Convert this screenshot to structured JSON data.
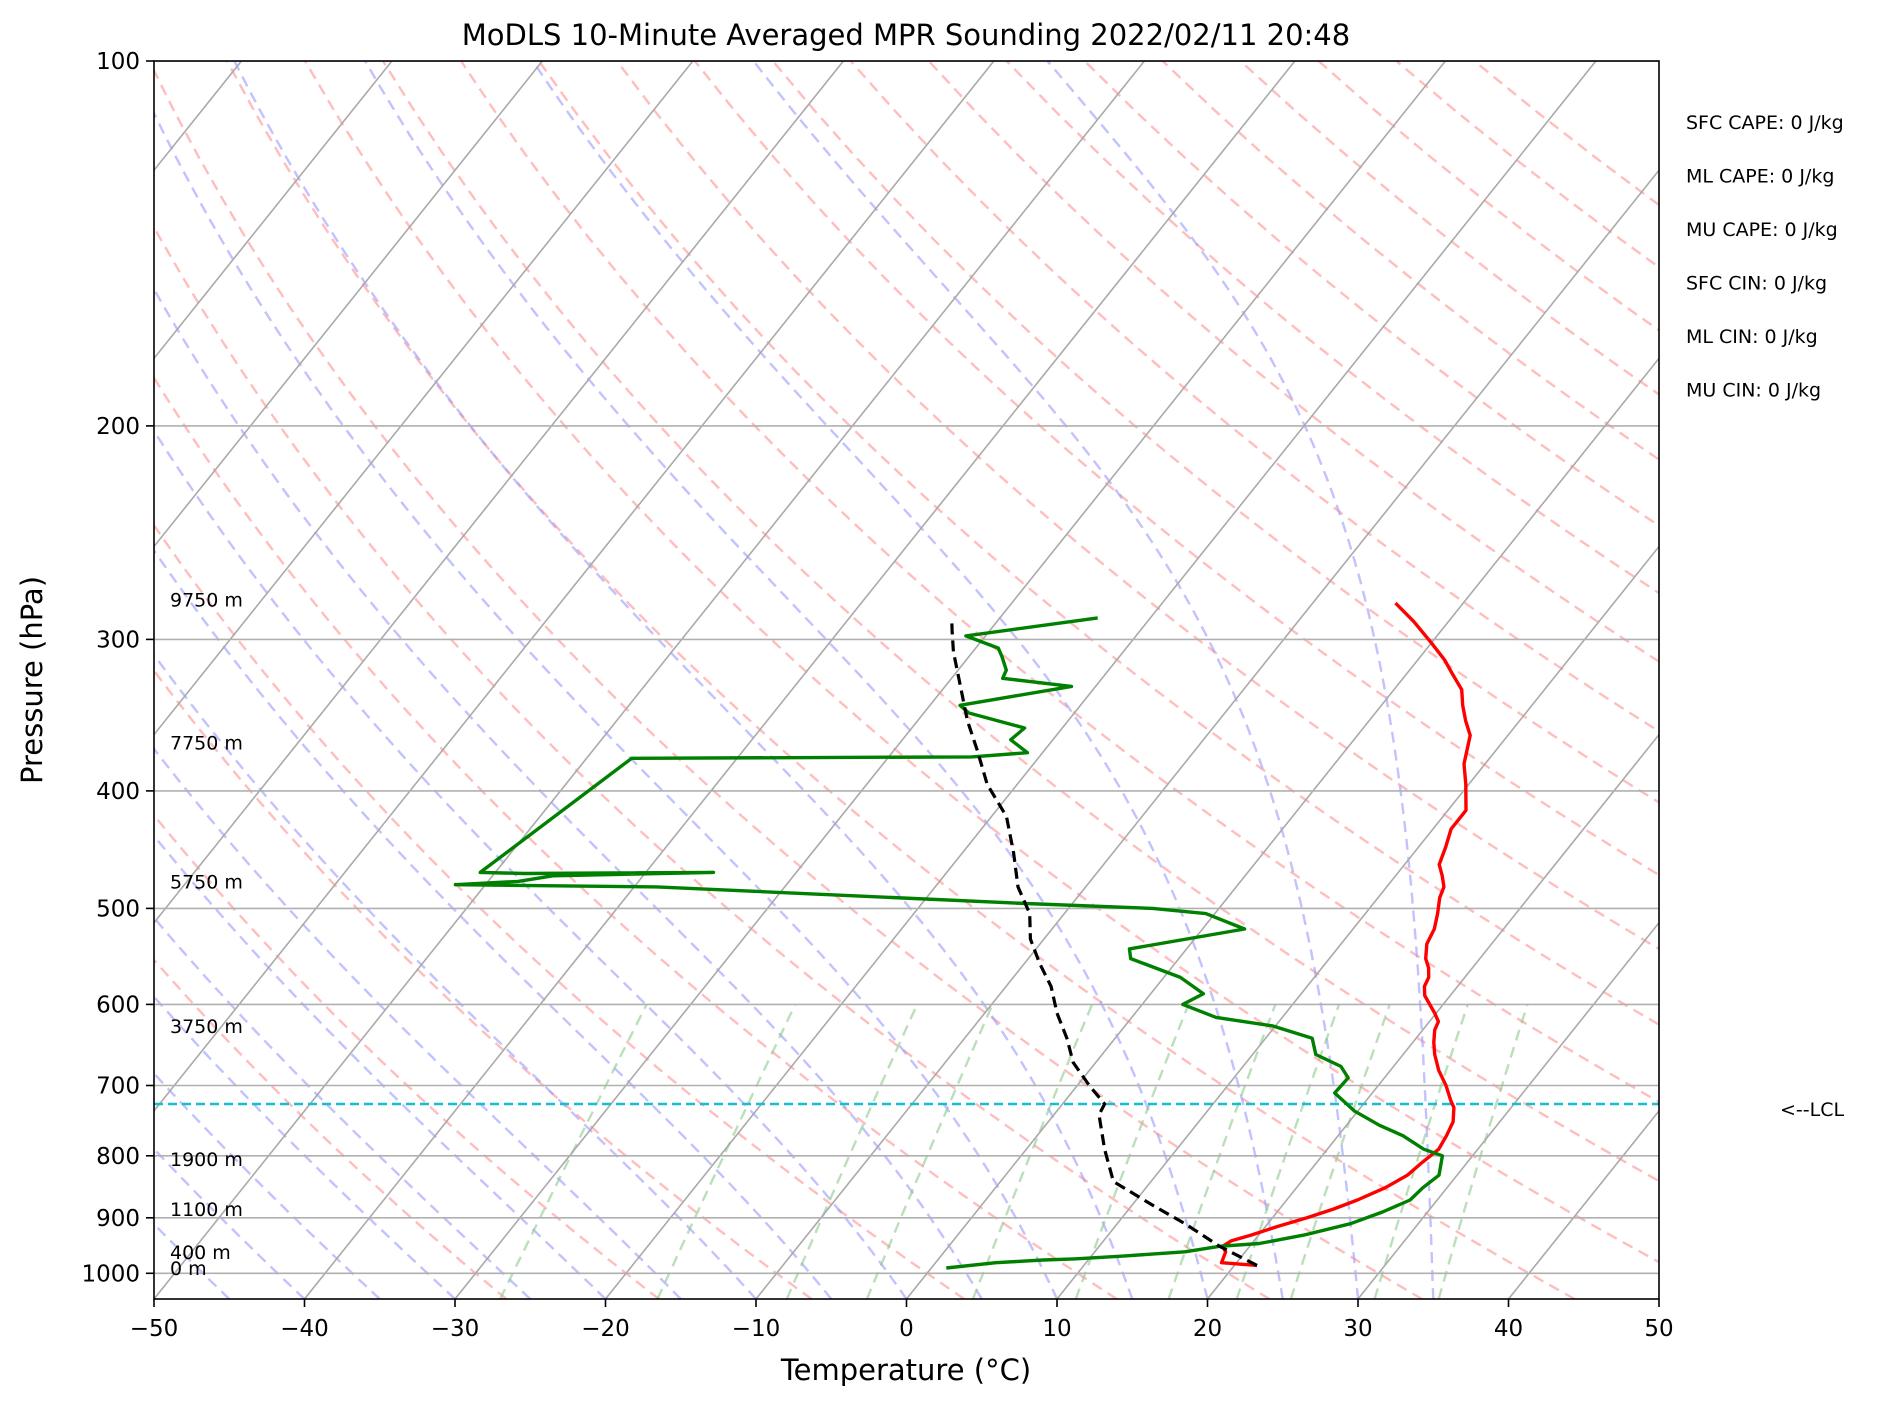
{
  "chart_data": {
    "type": "line",
    "title": "MoDLS 10-Minute Averaged MPR Sounding 2022/02/11 20:48",
    "xlabel": "Temperature (°C)",
    "ylabel": "Pressure (hPa)",
    "xlim": [
      -50,
      50
    ],
    "ylim": [
      1050,
      100
    ],
    "y_scale": "log",
    "grid": true,
    "x_ticks": [
      -50,
      -40,
      -30,
      -20,
      -10,
      0,
      10,
      20,
      30,
      40,
      50
    ],
    "x_tick_labels": [
      "−50",
      "−40",
      "−30",
      "−20",
      "−10",
      "0",
      "10",
      "20",
      "30",
      "40",
      "50"
    ],
    "y_ticks": [
      100,
      200,
      300,
      400,
      500,
      600,
      700,
      800,
      900,
      1000
    ],
    "y_tick_labels": [
      "100",
      "200",
      "300",
      "400",
      "500",
      "600",
      "700",
      "800",
      "900",
      "1000"
    ],
    "height_labels": [
      {
        "p": 990,
        "text": "0 m"
      },
      {
        "p": 960,
        "text": "400 m"
      },
      {
        "p": 885,
        "text": "1100 m"
      },
      {
        "p": 805,
        "text": "1900 m"
      },
      {
        "p": 625,
        "text": "3750 m"
      },
      {
        "p": 475,
        "text": "5750 m"
      },
      {
        "p": 365,
        "text": "7750 m"
      },
      {
        "p": 278,
        "text": "9750 m"
      }
    ],
    "lcl": {
      "p": 725,
      "label": "<--LCL"
    },
    "indices": [
      "SFC CAPE: 0 J/kg",
      "ML CAPE: 0 J/kg",
      "MU CAPE: 0 J/kg",
      "SFC CIN: 0 J/kg",
      "ML CIN: 0 J/kg",
      "MU CIN: 0 J/kg"
    ],
    "series": [
      {
        "role": "temperature",
        "color": "#ff0000",
        "points": [
          [
            21.5,
            985
          ],
          [
            19,
            980
          ],
          [
            18.7,
            960
          ],
          [
            18.2,
            950
          ],
          [
            18.5,
            940
          ],
          [
            19.5,
            930
          ],
          [
            20.8,
            915
          ],
          [
            22.3,
            900
          ],
          [
            23.6,
            885
          ],
          [
            24.7,
            870
          ],
          [
            25.9,
            850
          ],
          [
            26.7,
            830
          ],
          [
            27.0,
            810
          ],
          [
            27.4,
            790
          ],
          [
            27.2,
            770
          ],
          [
            26.9,
            750
          ],
          [
            26.2,
            730
          ],
          [
            25.6,
            720
          ],
          [
            24.5,
            700
          ],
          [
            23.2,
            680
          ],
          [
            22.1,
            660
          ],
          [
            21.4,
            645
          ],
          [
            20.8,
            630
          ],
          [
            20.6,
            620
          ],
          [
            19.9,
            610
          ],
          [
            19.1,
            600
          ],
          [
            18.3,
            590
          ],
          [
            17.8,
            580
          ],
          [
            17.6,
            570
          ],
          [
            17.1,
            560
          ],
          [
            16.4,
            550
          ],
          [
            15.7,
            535
          ],
          [
            15.4,
            520
          ],
          [
            14.8,
            505
          ],
          [
            14.1,
            490
          ],
          [
            13.8,
            480
          ],
          [
            13.1,
            470
          ],
          [
            12.3,
            460
          ],
          [
            11.8,
            445
          ],
          [
            11.2,
            430
          ],
          [
            11.2,
            415
          ],
          [
            9.8,
            395
          ],
          [
            8.6,
            380
          ],
          [
            7.5,
            360
          ],
          [
            6.4,
            350
          ],
          [
            5.4,
            340
          ],
          [
            4.5,
            330
          ],
          [
            3.0,
            320
          ],
          [
            1.8,
            312
          ],
          [
            0.0,
            302
          ],
          [
            -2.3,
            290
          ],
          [
            -4.5,
            280
          ]
        ]
      },
      {
        "role": "dewpoint",
        "color": "#008000",
        "points": [
          [
            1,
            990
          ],
          [
            4,
            980
          ],
          [
            7,
            975
          ],
          [
            9,
            973
          ],
          [
            12,
            968
          ],
          [
            16,
            960
          ],
          [
            18,
            950
          ],
          [
            20.5,
            945
          ],
          [
            23,
            930
          ],
          [
            25.5,
            910
          ],
          [
            27,
            890
          ],
          [
            28.2,
            870
          ],
          [
            28.4,
            850
          ],
          [
            28.8,
            830
          ],
          [
            28.0,
            800
          ],
          [
            26.4,
            790
          ],
          [
            24.3,
            770
          ],
          [
            22.2,
            755
          ],
          [
            19.8,
            735
          ],
          [
            17.5,
            710
          ],
          [
            17.6,
            690
          ],
          [
            16.5,
            675
          ],
          [
            14.2,
            660
          ],
          [
            13.1,
            640
          ],
          [
            9.8,
            625
          ],
          [
            5.6,
            615
          ],
          [
            2.7,
            600
          ],
          [
            3.5,
            588
          ],
          [
            1.1,
            570
          ],
          [
            -3.2,
            550
          ],
          [
            -3.8,
            540
          ],
          [
            2.8,
            520
          ],
          [
            -0.6,
            505
          ],
          [
            -4.4,
            500
          ],
          [
            -13.8,
            495
          ],
          [
            -38.5,
            480
          ],
          [
            -52,
            478
          ],
          [
            -48,
            475
          ],
          [
            -46,
            470
          ],
          [
            -35.5,
            467
          ],
          [
            -48,
            468
          ],
          [
            -51,
            467
          ],
          [
            -47,
            376
          ],
          [
            -24.5,
            375
          ],
          [
            -21.0,
            372
          ],
          [
            -22.8,
            363
          ],
          [
            -22.5,
            355
          ],
          [
            -27.0,
            345
          ],
          [
            -28.0,
            340
          ],
          [
            -21.6,
            328
          ],
          [
            -26.6,
            323
          ],
          [
            -26.8,
            318
          ],
          [
            -27.8,
            310
          ],
          [
            -28.5,
            305
          ],
          [
            -31.3,
            298
          ],
          [
            -23.5,
            288
          ]
        ]
      },
      {
        "role": "parcel",
        "color": "#000000",
        "style": "dashed",
        "points": [
          [
            21.5,
            985
          ],
          [
            18,
            950
          ],
          [
            14.5,
            910
          ],
          [
            11.5,
            880
          ],
          [
            7.5,
            840
          ],
          [
            5.2,
            790
          ],
          [
            3.0,
            740
          ],
          [
            2.8,
            725
          ],
          [
            0.8,
            700
          ],
          [
            -1.5,
            670
          ],
          [
            -3.2,
            640
          ],
          [
            -5.2,
            610
          ],
          [
            -7.0,
            580
          ],
          [
            -9.0,
            555
          ],
          [
            -10.9,
            530
          ],
          [
            -12.3,
            505
          ],
          [
            -14.5,
            480
          ],
          [
            -16.6,
            450
          ],
          [
            -19.0,
            420
          ],
          [
            -22.0,
            395
          ],
          [
            -24.5,
            370
          ],
          [
            -26.7,
            350
          ],
          [
            -29.3,
            325
          ],
          [
            -31.3,
            307
          ],
          [
            -32.5,
            295
          ],
          [
            -33.2,
            288
          ]
        ]
      }
    ]
  }
}
